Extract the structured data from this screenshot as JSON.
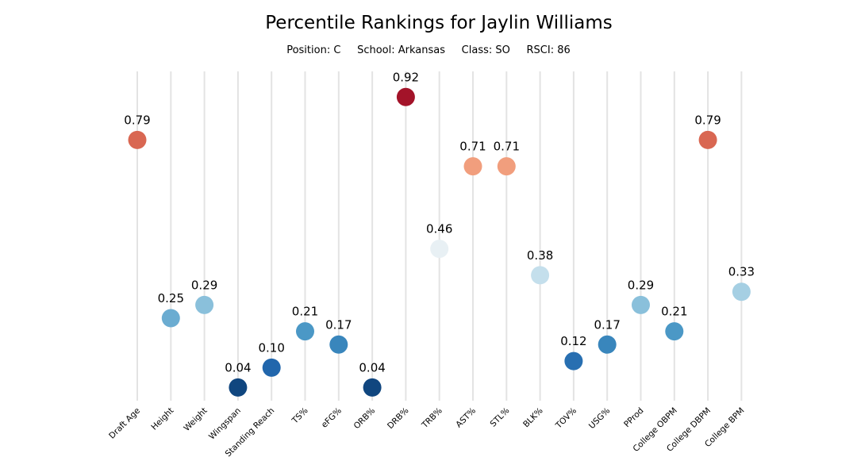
{
  "chart_data": {
    "type": "scatter",
    "title": "Percentile Rankings for Jaylin Williams",
    "subtitle": "Position: C     School: Arkansas     Class: SO     RSCI: 86",
    "categories": [
      "Draft Age",
      "Height",
      "Weight",
      "Wingspan",
      "Standing Reach",
      "TS%",
      "eFG%",
      "ORB%",
      "DRB%",
      "TRB%",
      "AST%",
      "STL%",
      "BLK%",
      "TOV%",
      "USG%",
      "PProd",
      "College OBPM",
      "College DBPM",
      "College BPM"
    ],
    "values": [
      0.79,
      0.25,
      0.29,
      0.04,
      0.1,
      0.21,
      0.17,
      0.04,
      0.92,
      0.46,
      0.71,
      0.71,
      0.38,
      0.12,
      0.17,
      0.29,
      0.21,
      0.79,
      0.33
    ],
    "value_labels": [
      "0.79",
      "0.25",
      "0.29",
      "0.04",
      "0.10",
      "0.21",
      "0.17",
      "0.04",
      "0.92",
      "0.46",
      "0.71",
      "0.71",
      "0.38",
      "0.12",
      "0.17",
      "0.29",
      "0.21",
      "0.79",
      "0.33"
    ],
    "ylim": [
      0,
      1
    ],
    "colormap": "RdBu_r",
    "grid": true,
    "legend": "none"
  }
}
